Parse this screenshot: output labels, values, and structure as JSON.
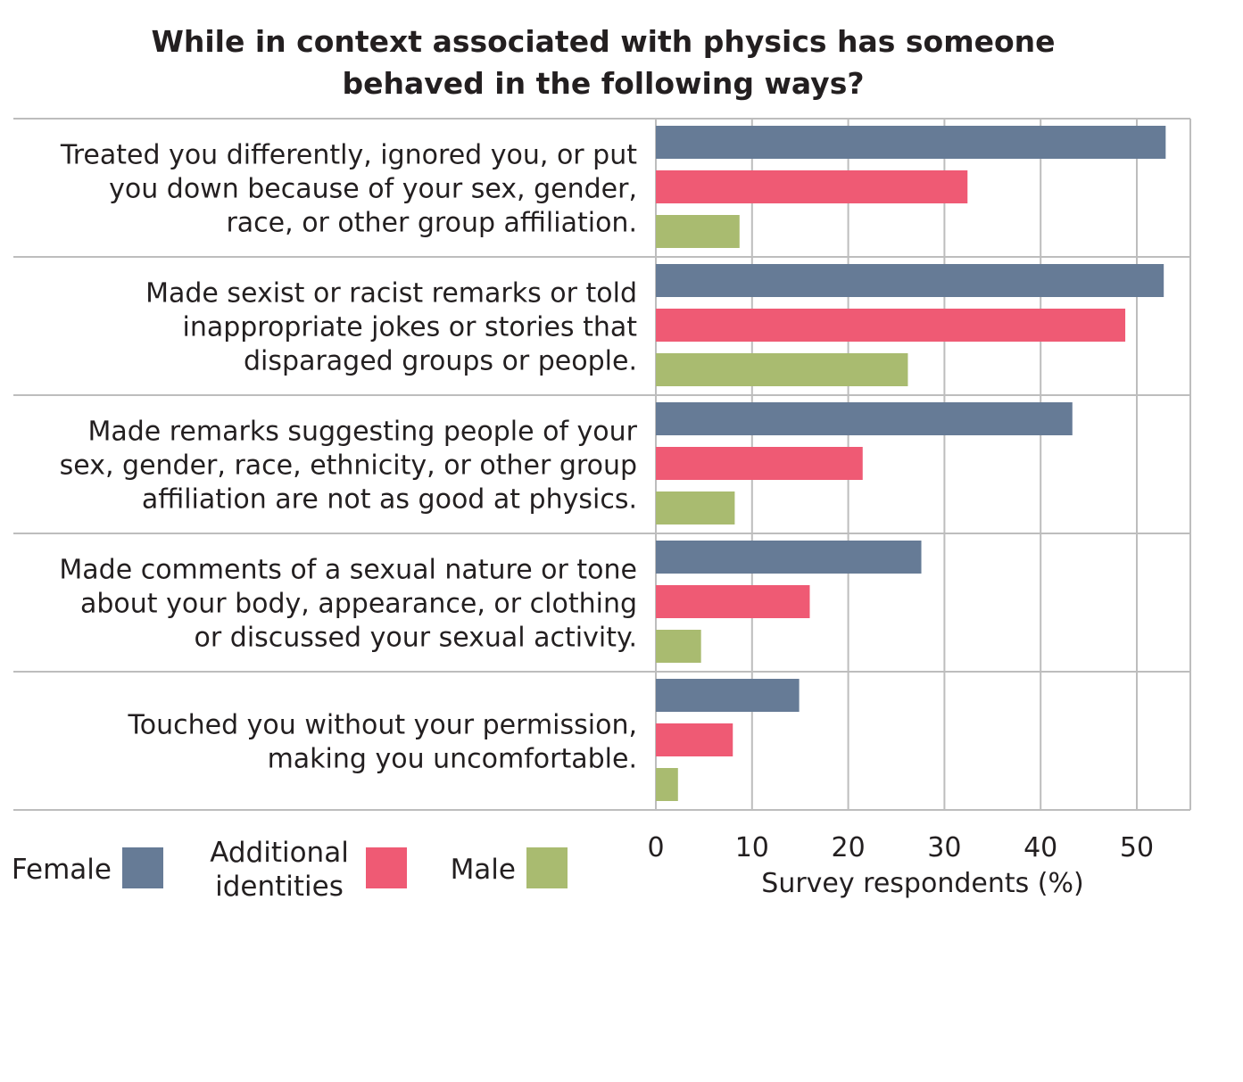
{
  "chart_data": {
    "type": "bar",
    "orientation": "horizontal",
    "title": [
      "While in context associated with physics has someone",
      "behaved in the following ways?"
    ],
    "xlabel": "Survey respondents (%)",
    "ylabel": "",
    "xlim": [
      0,
      55
    ],
    "xticks": [
      "0",
      "10",
      "20",
      "30",
      "40",
      "50"
    ],
    "grid": true,
    "legend_position": "bottom-left",
    "categories": [
      [
        "Treated you differently, ignored you, or put",
        "you down because of your sex, gender,",
        "race, or other group affiliation."
      ],
      [
        "Made sexist or racist remarks or told",
        "inappropriate jokes or stories that",
        "disparaged groups or people."
      ],
      [
        "Made remarks suggesting people of your",
        "sex, gender, race, ethnicity, or other group",
        "affiliation are not as good at physics."
      ],
      [
        "Made comments of a sexual nature or tone",
        "about your body, appearance, or clothing",
        "or discussed your sexual activity."
      ],
      [
        "Touched you without your permission,",
        "making you uncomfortable."
      ]
    ],
    "series": [
      {
        "name": "Female",
        "color": "#667b96",
        "values": [
          53.0,
          52.8,
          43.3,
          27.6,
          14.9
        ]
      },
      {
        "name": "Additional identities",
        "legend_lines": [
          "Additional",
          "identities"
        ],
        "color": "#ef5a74",
        "values": [
          32.4,
          48.8,
          21.5,
          16.0,
          8.0
        ]
      },
      {
        "name": "Male",
        "color": "#a9bb70",
        "values": [
          8.7,
          26.2,
          8.2,
          4.7,
          2.3
        ]
      }
    ]
  }
}
